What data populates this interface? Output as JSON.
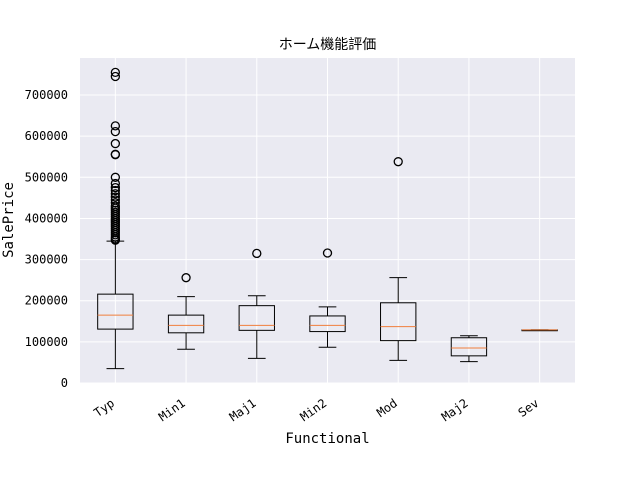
{
  "chart_data": {
    "type": "box",
    "title": "ホーム機能評価",
    "xlabel": "Functional",
    "ylabel": "SalePrice",
    "ylim": [
      0,
      790000
    ],
    "yticks": [
      0,
      100000,
      200000,
      300000,
      400000,
      500000,
      600000,
      700000
    ],
    "ytick_labels": [
      "0",
      "100000",
      "200000",
      "300000",
      "400000",
      "500000",
      "600000",
      "700000"
    ],
    "grid": true,
    "categories": [
      "Typ",
      "Min1",
      "Maj1",
      "Min2",
      "Mod",
      "Maj2",
      "Sev"
    ],
    "boxes": [
      {
        "category": "Typ",
        "whisker_low": 35000,
        "q1": 131000,
        "median": 165000,
        "q3": 216000,
        "whisker_high": 345000,
        "outliers": [
          347000,
          350000,
          355000,
          360000,
          365000,
          370000,
          375000,
          380000,
          385000,
          390000,
          395000,
          400000,
          405000,
          410000,
          415000,
          420000,
          425000,
          430000,
          438000,
          445000,
          452000,
          460000,
          468000,
          475000,
          485000,
          500000,
          555000,
          556000,
          582000,
          611000,
          625000,
          745000,
          755000
        ]
      },
      {
        "category": "Min1",
        "whisker_low": 82000,
        "q1": 122000,
        "median": 140000,
        "q3": 165000,
        "whisker_high": 210000,
        "outliers": [
          256000
        ]
      },
      {
        "category": "Maj1",
        "whisker_low": 60000,
        "q1": 128000,
        "median": 140000,
        "q3": 188000,
        "whisker_high": 212000,
        "outliers": [
          315000
        ]
      },
      {
        "category": "Min2",
        "whisker_low": 87000,
        "q1": 125000,
        "median": 140000,
        "q3": 163000,
        "whisker_high": 185000,
        "outliers": [
          316000
        ]
      },
      {
        "category": "Mod",
        "whisker_low": 55000,
        "q1": 103000,
        "median": 137000,
        "q3": 195000,
        "whisker_high": 256000,
        "outliers": [
          538000
        ]
      },
      {
        "category": "Maj2",
        "whisker_low": 52000,
        "q1": 66000,
        "median": 85000,
        "q3": 110000,
        "whisker_high": 115000,
        "outliers": []
      },
      {
        "category": "Sev",
        "whisker_low": 129000,
        "q1": 129000,
        "median": 129000,
        "q3": 129000,
        "whisker_high": 129000,
        "outliers": []
      }
    ],
    "colors": {
      "background": "#eaeaf2",
      "grid": "#ffffff",
      "box": "#000000",
      "median": "#f07f3c"
    }
  }
}
